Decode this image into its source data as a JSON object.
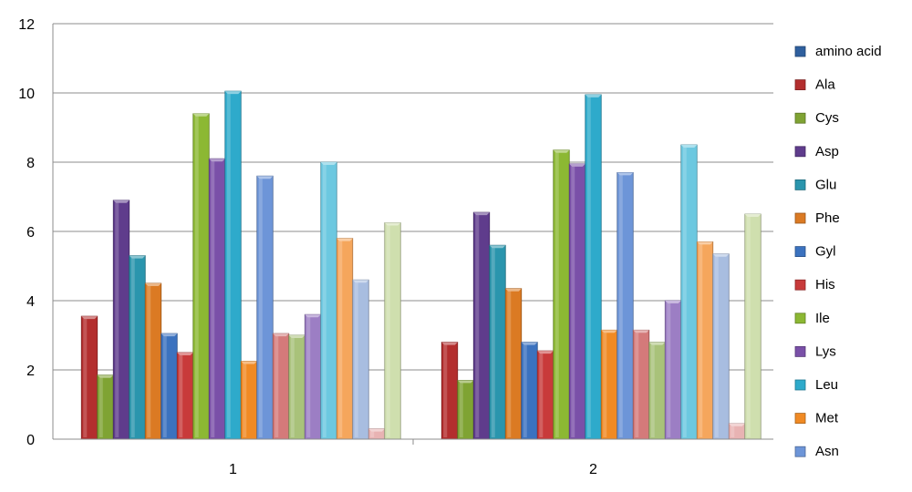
{
  "chart_data": {
    "type": "bar",
    "categories": [
      "1",
      "2"
    ],
    "ylim": [
      0,
      12
    ],
    "yticks": [
      0,
      2,
      4,
      6,
      8,
      10,
      12
    ],
    "grid": true,
    "legend_position": "right",
    "legend": [
      "amino acid",
      "Ala",
      "Cys",
      "Asp",
      "Glu",
      "Phe",
      "Gyl",
      "His",
      "Ile",
      "Lys",
      "Leu",
      "Met",
      "Asn"
    ],
    "series": [
      {
        "color": "#2f5f9e",
        "values": [
          null,
          null
        ]
      },
      {
        "name": "Ala",
        "color": "#b32e2e",
        "values": [
          3.55,
          2.8
        ]
      },
      {
        "name": "Cys",
        "color": "#7fa333",
        "values": [
          1.85,
          1.7
        ]
      },
      {
        "name": "Asp",
        "color": "#5f3c8c",
        "values": [
          6.9,
          6.55
        ]
      },
      {
        "name": "Glu",
        "color": "#2a95ad",
        "values": [
          5.3,
          5.6
        ]
      },
      {
        "name": "Phe",
        "color": "#db7a23",
        "values": [
          4.5,
          4.35
        ]
      },
      {
        "name": "Gyl",
        "color": "#3b72bf",
        "values": [
          3.05,
          2.8
        ]
      },
      {
        "name": "His",
        "color": "#c83a3a",
        "values": [
          2.5,
          2.55
        ]
      },
      {
        "name": "Ile",
        "color": "#8cb833",
        "values": [
          9.4,
          8.35
        ]
      },
      {
        "name": "Lys",
        "color": "#7a50a8",
        "values": [
          8.1,
          7.95
        ]
      },
      {
        "name": "Leu",
        "color": "#2eaacb",
        "values": [
          10.05,
          9.95
        ]
      },
      {
        "name": "Met",
        "color": "#f08a24",
        "values": [
          2.25,
          3.15
        ]
      },
      {
        "name": "Asn",
        "color": "#6d95d8",
        "values": [
          7.6,
          7.7
        ]
      },
      {
        "color": "#d47a7a",
        "values": [
          3.05,
          3.15
        ]
      },
      {
        "color": "#a9c27a",
        "values": [
          3.0,
          2.8
        ]
      },
      {
        "color": "#9c7ec4",
        "values": [
          3.6,
          4.0
        ]
      },
      {
        "color": "#6cc8e0",
        "values": [
          8.0,
          8.5
        ]
      },
      {
        "color": "#f5a65c",
        "values": [
          5.8,
          5.7
        ]
      },
      {
        "color": "#a8bde0",
        "values": [
          4.6,
          5.35
        ]
      },
      {
        "color": "#e8b3b3",
        "values": [
          0.3,
          0.45
        ]
      },
      {
        "color": "#cfdfae",
        "values": [
          6.25,
          6.5
        ]
      }
    ]
  }
}
